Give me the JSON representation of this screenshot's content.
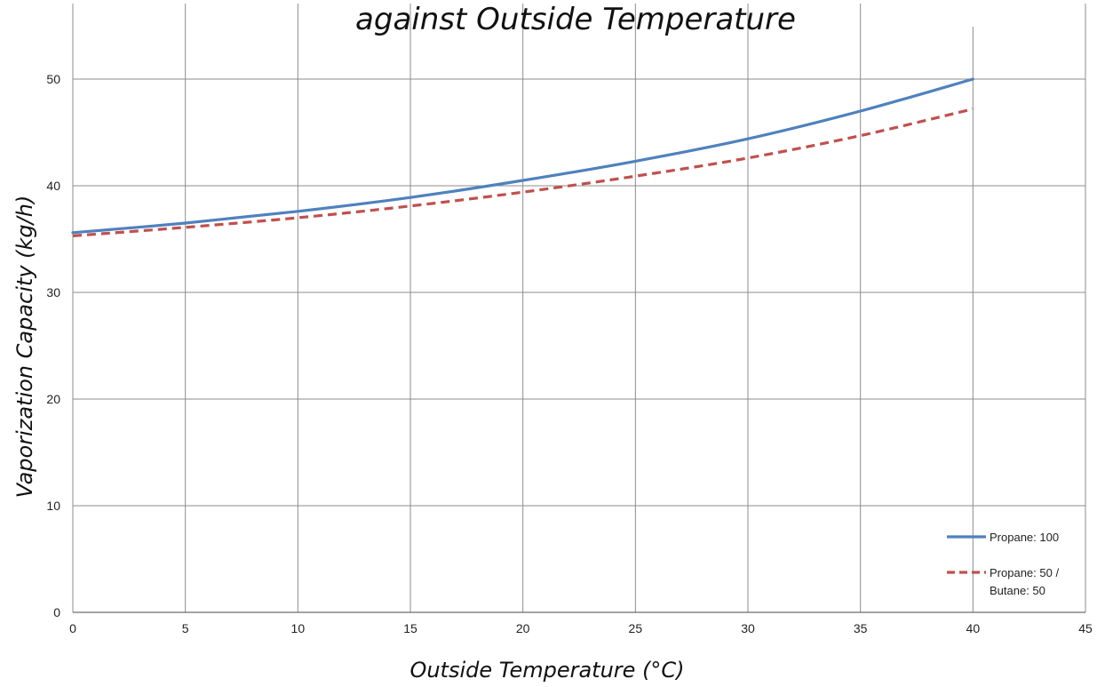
{
  "chart_data": {
    "type": "line",
    "title": "against Outside Temperature",
    "xlabel": "Outside Temperature (°C)",
    "ylabel": "Vaporization Capacity (kg/h)",
    "xlim": [
      0,
      45
    ],
    "ylim": [
      0,
      50
    ],
    "xticks": [
      "0",
      "5",
      "10",
      "15",
      "20",
      "25",
      "30",
      "35",
      "40",
      "45"
    ],
    "yticks": [
      "0",
      "10",
      "20",
      "30",
      "40",
      "50"
    ],
    "grid": true,
    "legend_position": "bottom-right",
    "series": [
      {
        "name": "Propane: 100",
        "name_lines": [
          "Propane: 100"
        ],
        "color": "#4f81bd",
        "style": "solid",
        "x": [
          0,
          5,
          10,
          15,
          20,
          25,
          30,
          35,
          40
        ],
        "y": [
          35.6,
          36.5,
          37.6,
          38.9,
          40.5,
          42.3,
          44.4,
          47.0,
          50.0
        ]
      },
      {
        "name": "Propane: 50 / Butane: 50",
        "name_lines": [
          "Propane: 50 /",
          "Butane: 50"
        ],
        "color": "#c0504d",
        "style": "dashed",
        "x": [
          0,
          5,
          10,
          15,
          20,
          25,
          30,
          35,
          40
        ],
        "y": [
          35.3,
          36.1,
          37.0,
          38.1,
          39.4,
          40.9,
          42.6,
          44.7,
          47.2
        ]
      }
    ]
  }
}
